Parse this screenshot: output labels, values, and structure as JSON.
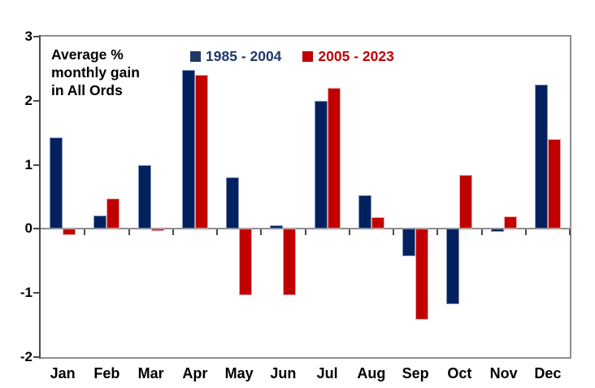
{
  "chart_data": {
    "type": "bar",
    "title_lines": [
      "Average %",
      "monthly gain",
      "in All Ords"
    ],
    "categories": [
      "Jan",
      "Feb",
      "Mar",
      "Apr",
      "May",
      "Jun",
      "Jul",
      "Aug",
      "Sep",
      "Oct",
      "Nov",
      "Dec"
    ],
    "series": [
      {
        "name": "1985 - 2004",
        "color": "#02215e",
        "border_color": "#8496b8",
        "legend_color": "#1f3a68",
        "values": [
          1.43,
          0.21,
          1.0,
          2.48,
          0.8,
          0.05,
          2.0,
          0.52,
          -0.43,
          -1.18,
          -0.05,
          2.25
        ]
      },
      {
        "name": "2005 - 2023",
        "color": "#c00000",
        "border_color": "#f0a3a3",
        "legend_color": "#c00000",
        "values": [
          -0.1,
          0.48,
          -0.03,
          2.4,
          -1.04,
          -1.04,
          2.2,
          0.18,
          -1.42,
          0.84,
          0.2,
          1.4
        ]
      }
    ],
    "xlabel": "",
    "ylabel": "",
    "ylim": [
      -2,
      3
    ],
    "yticks": [
      3,
      2,
      1,
      0,
      -1,
      -2
    ],
    "legend_position": "top-center-inside",
    "grid": "zero-line-only",
    "axis_color": "#4a4a4a",
    "frame_color": "#8f8f8f",
    "background_color": "#ffffff"
  }
}
